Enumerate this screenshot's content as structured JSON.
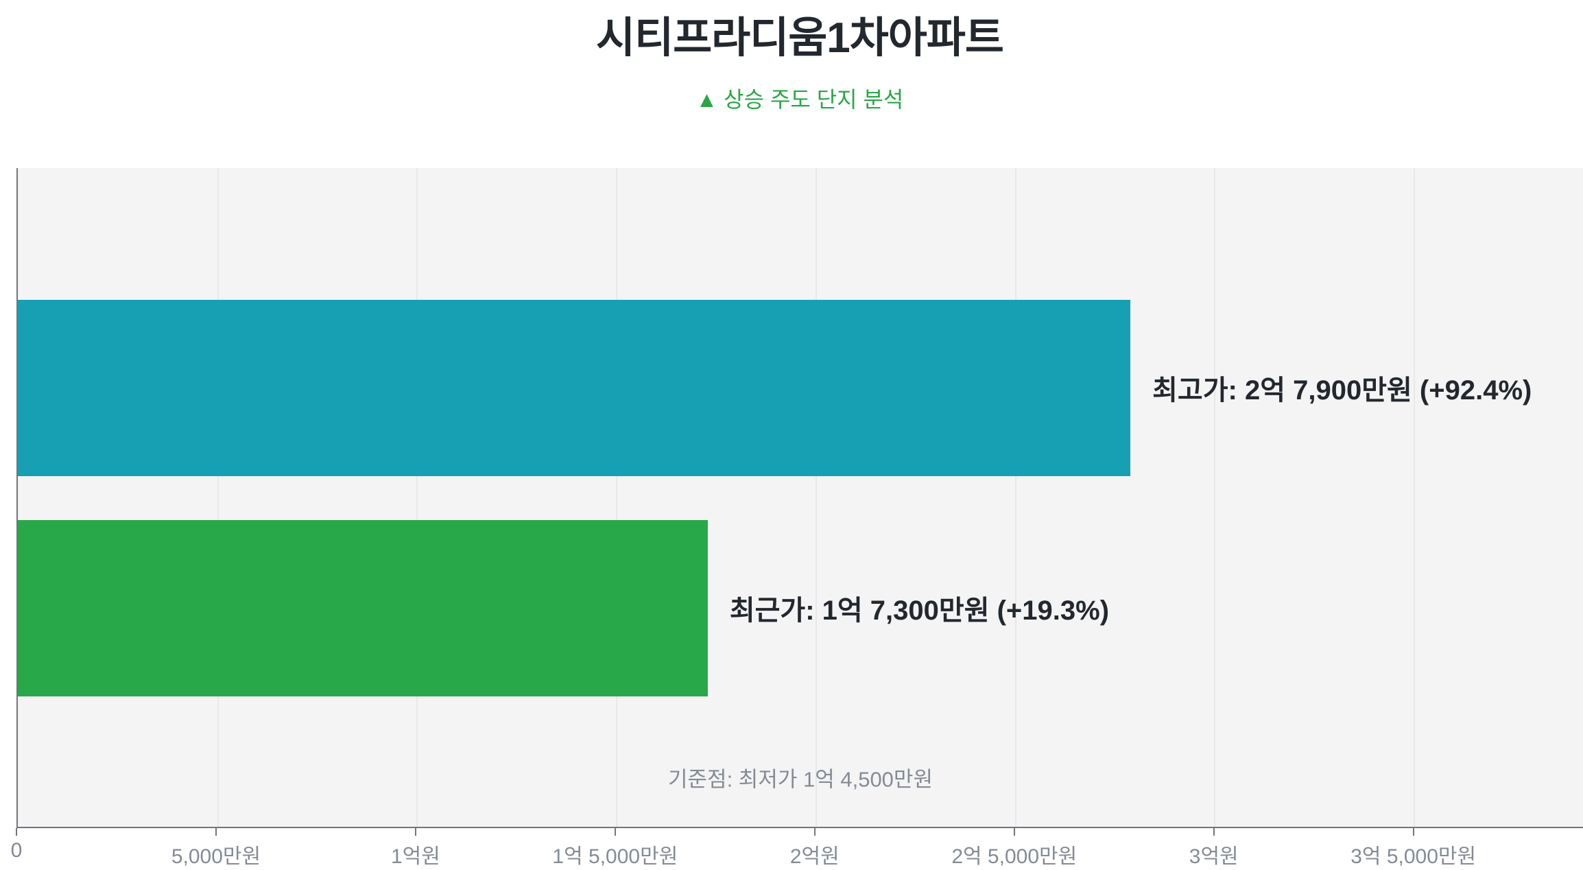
{
  "title": "시티프라디움1차아파트",
  "subtitle": "▲ 상승 주도 단지 분석",
  "chart_data": {
    "type": "bar",
    "orientation": "horizontal",
    "title": "시티프라디움1차아파트",
    "subtitle": "▲ 상승 주도 단지 분석",
    "categories": [
      "최고가",
      "최근가"
    ],
    "series": [
      {
        "name": "최고가",
        "value_manwon": 27900,
        "value_label": "2억 7,900만원",
        "change": "+92.4%",
        "bar_label": "최고가: 2억 7,900만원 (+92.4%)",
        "color": "#17a0b4"
      },
      {
        "name": "최근가",
        "value_manwon": 17300,
        "value_label": "1억 7,300만원",
        "change": "+19.3%",
        "bar_label": "최근가: 1억 7,300만원 (+19.3%)",
        "color": "#29a84a"
      }
    ],
    "baseline_note": "기준점: 최저가 1억 4,500만원",
    "baseline_value_manwon": 14500,
    "x_ticks": [
      "0",
      "5,000만원",
      "1억원",
      "1억 5,000만원",
      "2억원",
      "2억 5,000만원",
      "3억원",
      "3억 5,000만원"
    ],
    "x_tick_values_manwon": [
      0,
      5000,
      10000,
      15000,
      20000,
      25000,
      30000,
      35000
    ],
    "xlim_manwon": [
      0,
      39250
    ],
    "grid": true,
    "legend": false
  },
  "colors": {
    "title_text": "#23272e",
    "subtitle_green": "#28a745",
    "plot_background": "#f4f4f5",
    "gridline": "#e8e8ea",
    "axis_line": "#70757c",
    "tick_label": "#848b94",
    "bar_label_text": "#23272e",
    "baseline_text": "#848b94"
  }
}
